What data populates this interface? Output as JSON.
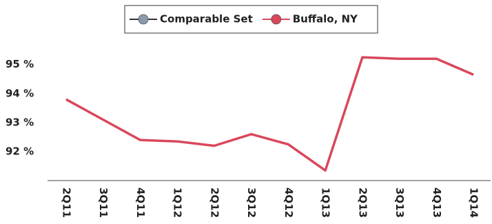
{
  "chart_data": {
    "type": "line",
    "categories": [
      "2Q11",
      "3Q11",
      "4Q11",
      "1Q12",
      "2Q12",
      "3Q12",
      "4Q12",
      "1Q13",
      "2Q13",
      "3Q13",
      "4Q13",
      "1Q14"
    ],
    "series": [
      {
        "name": "Comparable Set",
        "color": "#8a9aae",
        "values": [
          null,
          null,
          null,
          null,
          null,
          null,
          null,
          null,
          null,
          null,
          null,
          null
        ]
      },
      {
        "name": "Buffalo, NY",
        "color": "#d9475a",
        "values": [
          93.8,
          93.1,
          92.4,
          92.35,
          92.2,
          92.6,
          92.25,
          91.35,
          95.25,
          95.2,
          95.2,
          94.65
        ]
      }
    ],
    "ylim": [
      91,
      95.8
    ],
    "yticks": [
      {
        "value": 92,
        "label": "92 %"
      },
      {
        "value": 93,
        "label": "93 %"
      },
      {
        "value": 94,
        "label": "94 %"
      },
      {
        "value": 95,
        "label": "95 %"
      }
    ],
    "grid": false
  }
}
